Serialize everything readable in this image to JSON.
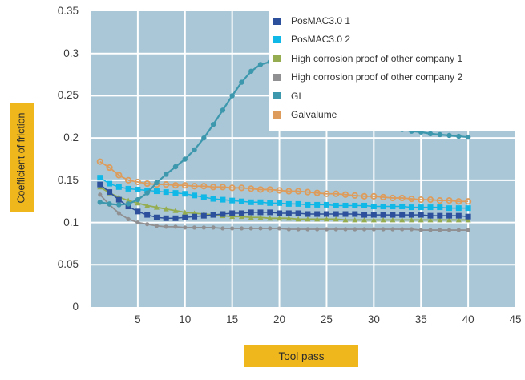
{
  "theme": {
    "axis_label_bg": "#f0b71d",
    "axis_label_text": "#2d2d2d",
    "plot_bg": "#a9c7d6",
    "grid_color": "#ffffff",
    "tick_text": "#3d3d3d",
    "legend_bg": "#ffffff"
  },
  "chart_data": {
    "type": "line",
    "title": "",
    "xlabel": "Tool pass",
    "ylabel": "Coefficient of friction",
    "xlim": [
      0,
      45
    ],
    "ylim": [
      0,
      0.35
    ],
    "grid": true,
    "legend_position": "top-right",
    "x_ticks": [
      5,
      10,
      15,
      20,
      25,
      30,
      35,
      40,
      45
    ],
    "y_ticks": [
      0,
      0.05,
      0.1,
      0.15,
      0.2,
      0.25,
      0.3,
      0.35
    ],
    "y_tick_labels": [
      "0",
      "0.05",
      "0.1",
      "0.15",
      "0.2",
      "0.25",
      "0.3",
      "0.35"
    ],
    "x": [
      1,
      2,
      3,
      4,
      5,
      6,
      7,
      8,
      9,
      10,
      11,
      12,
      13,
      14,
      15,
      16,
      17,
      18,
      19,
      20,
      21,
      22,
      23,
      24,
      25,
      26,
      27,
      28,
      29,
      30,
      31,
      32,
      33,
      34,
      35,
      36,
      37,
      38,
      39,
      40
    ],
    "series": [
      {
        "name": "PosMAC3.0 1",
        "color": "#2d509c",
        "marker": "square",
        "marker_size": 7,
        "line_width": 1.5,
        "values": [
          0.145,
          0.136,
          0.127,
          0.119,
          0.113,
          0.109,
          0.106,
          0.105,
          0.105,
          0.106,
          0.107,
          0.108,
          0.109,
          0.11,
          0.111,
          0.111,
          0.112,
          0.112,
          0.112,
          0.111,
          0.111,
          0.111,
          0.11,
          0.11,
          0.11,
          0.11,
          0.11,
          0.11,
          0.109,
          0.109,
          0.109,
          0.109,
          0.109,
          0.109,
          0.109,
          0.108,
          0.108,
          0.108,
          0.108,
          0.107
        ]
      },
      {
        "name": "PosMAC3.0 2",
        "color": "#0fb8e6",
        "marker": "square",
        "marker_size": 7,
        "line_width": 1.5,
        "values": [
          0.153,
          0.146,
          0.142,
          0.14,
          0.139,
          0.138,
          0.137,
          0.136,
          0.135,
          0.134,
          0.132,
          0.13,
          0.128,
          0.127,
          0.126,
          0.125,
          0.124,
          0.124,
          0.123,
          0.123,
          0.122,
          0.122,
          0.121,
          0.121,
          0.121,
          0.12,
          0.12,
          0.12,
          0.12,
          0.119,
          0.119,
          0.119,
          0.119,
          0.118,
          0.118,
          0.118,
          0.118,
          0.117,
          0.117,
          0.117
        ]
      },
      {
        "name": "High corrosion proof of other company 1",
        "color": "#95ad50",
        "marker": "triangle",
        "marker_size": 7,
        "line_width": 1.8,
        "values": [
          0.142,
          0.135,
          0.13,
          0.126,
          0.123,
          0.12,
          0.118,
          0.116,
          0.114,
          0.112,
          0.111,
          0.11,
          0.109,
          0.108,
          0.107,
          0.107,
          0.106,
          0.106,
          0.105,
          0.105,
          0.105,
          0.104,
          0.104,
          0.104,
          0.104,
          0.104,
          0.103,
          0.103,
          0.103,
          0.103,
          0.103,
          0.103,
          0.103,
          0.103,
          0.103,
          0.103,
          0.103,
          0.103,
          0.103,
          0.103
        ]
      },
      {
        "name": "High corrosion proof of other company 2",
        "color": "#909092",
        "marker": "circle",
        "marker_size": 5.2,
        "line_width": 1.8,
        "values": [
          0.133,
          0.121,
          0.111,
          0.104,
          0.1,
          0.098,
          0.096,
          0.095,
          0.095,
          0.094,
          0.094,
          0.094,
          0.094,
          0.093,
          0.093,
          0.093,
          0.093,
          0.093,
          0.093,
          0.093,
          0.092,
          0.092,
          0.092,
          0.092,
          0.092,
          0.092,
          0.092,
          0.092,
          0.092,
          0.092,
          0.092,
          0.092,
          0.092,
          0.092,
          0.091,
          0.091,
          0.091,
          0.091,
          0.091,
          0.091
        ]
      },
      {
        "name": "GI",
        "color": "#3d98ae",
        "marker": "circle",
        "marker_size": 6.4,
        "line_width": 2.2,
        "values": [
          0.124,
          0.122,
          0.121,
          0.122,
          0.127,
          0.135,
          0.147,
          0.157,
          0.166,
          0.175,
          0.186,
          0.2,
          0.216,
          0.233,
          0.25,
          0.266,
          0.279,
          0.287,
          0.29,
          0.289,
          0.286,
          0.281,
          0.275,
          0.267,
          0.259,
          0.25,
          0.242,
          0.234,
          0.227,
          0.221,
          0.216,
          0.212,
          0.21,
          0.208,
          0.207,
          0.205,
          0.204,
          0.203,
          0.202,
          0.201
        ]
      },
      {
        "name": "Galvalume",
        "color": "#dd9c5c",
        "marker": "open-circle",
        "marker_size": 6.4,
        "line_width": 1.8,
        "values": [
          0.172,
          0.165,
          0.156,
          0.15,
          0.148,
          0.146,
          0.145,
          0.145,
          0.144,
          0.144,
          0.143,
          0.143,
          0.142,
          0.142,
          0.141,
          0.141,
          0.14,
          0.139,
          0.139,
          0.138,
          0.137,
          0.137,
          0.136,
          0.135,
          0.134,
          0.134,
          0.133,
          0.132,
          0.131,
          0.131,
          0.13,
          0.129,
          0.129,
          0.128,
          0.127,
          0.127,
          0.126,
          0.126,
          0.125,
          0.125
        ]
      }
    ],
    "draw_order": [
      3,
      2,
      1,
      0,
      5,
      4
    ]
  }
}
